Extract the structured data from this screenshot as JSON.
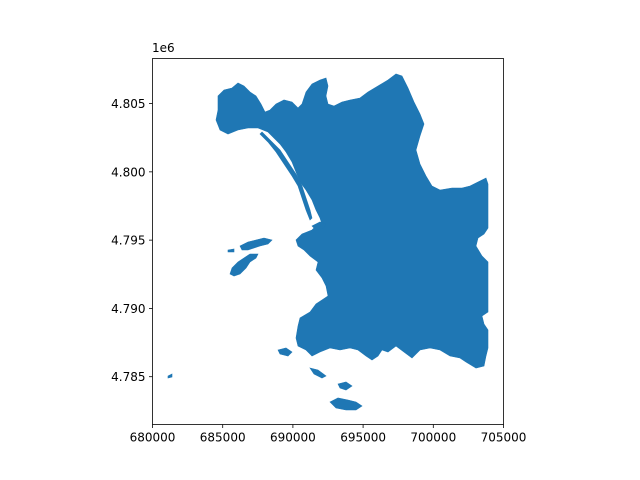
{
  "chart_data": {
    "type": "map",
    "fill_color": "#1f77b4",
    "axis_offset": "1e6",
    "xlim": [
      680000,
      705000
    ],
    "ylim": [
      4781500,
      4808300
    ],
    "x_ticks": [
      {
        "value": 680000,
        "label": "680000"
      },
      {
        "value": 685000,
        "label": "685000"
      },
      {
        "value": 690000,
        "label": "690000"
      },
      {
        "value": 695000,
        "label": "695000"
      },
      {
        "value": 700000,
        "label": "700000"
      },
      {
        "value": 705000,
        "label": "705000"
      }
    ],
    "y_ticks": [
      {
        "value": 4785000,
        "label": "4.785"
      },
      {
        "value": 4790000,
        "label": "4.790"
      },
      {
        "value": 4795000,
        "label": "4.795"
      },
      {
        "value": 4800000,
        "label": "4.800"
      },
      {
        "value": 4805000,
        "label": "4.805"
      }
    ],
    "grid": false,
    "legend": "none"
  }
}
